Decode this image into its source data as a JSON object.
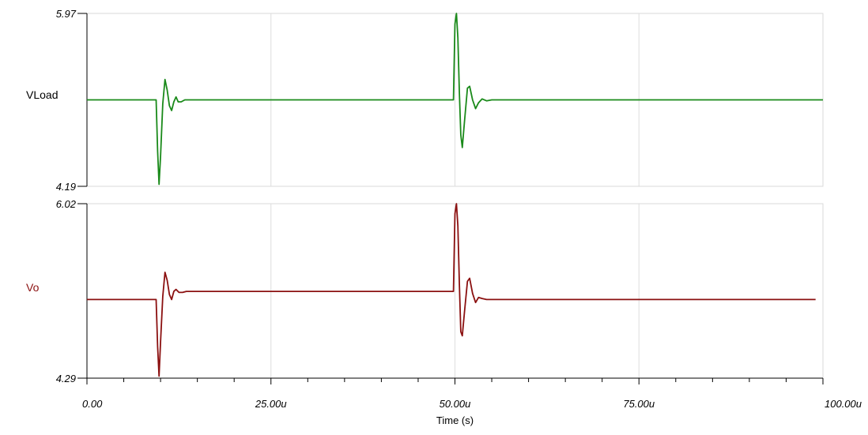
{
  "chart_data": {
    "type": "line",
    "xlabel": "Time (s)",
    "xlim": [
      0,
      100
    ],
    "x_tick_labels": [
      "0.00",
      "25.00u",
      "50.00u",
      "75.00u",
      "100.00u"
    ],
    "x_tick_values": [
      0,
      25,
      50,
      75,
      100
    ],
    "grid": true,
    "panels": [
      {
        "name": "VLoad",
        "ylim": [
          4.19,
          5.97
        ],
        "y_tick_labels": [
          "5.97",
          "4.19"
        ],
        "color": "#1a8a1a",
        "x": [
          0,
          9.4,
          9.6,
          9.8,
          10.0,
          10.3,
          10.6,
          10.9,
          11.2,
          11.5,
          11.8,
          12.1,
          12.4,
          12.8,
          13.3,
          14,
          49.8,
          50.0,
          50.2,
          50.4,
          50.6,
          50.8,
          51.0,
          51.3,
          51.7,
          52.0,
          52.4,
          52.8,
          53.2,
          53.7,
          54.3,
          55,
          100
        ],
        "y": [
          5.08,
          5.08,
          4.55,
          4.21,
          4.5,
          5.04,
          5.29,
          5.18,
          5.02,
          4.97,
          5.06,
          5.11,
          5.06,
          5.06,
          5.08,
          5.08,
          5.08,
          5.86,
          5.97,
          5.72,
          5.15,
          4.72,
          4.59,
          4.86,
          5.2,
          5.22,
          5.08,
          4.99,
          5.05,
          5.09,
          5.07,
          5.08,
          5.08
        ]
      },
      {
        "name": "Vo",
        "ylim": [
          4.29,
          6.02
        ],
        "y_tick_labels": [
          "6.02",
          "4.29"
        ],
        "color": "#8b1010",
        "x": [
          0,
          9.4,
          9.6,
          9.8,
          10.0,
          10.3,
          10.6,
          10.9,
          11.2,
          11.5,
          11.8,
          12.1,
          12.5,
          13.0,
          13.5,
          14,
          49.8,
          50.0,
          50.2,
          50.4,
          50.6,
          50.8,
          51.0,
          51.3,
          51.7,
          52.0,
          52.4,
          52.8,
          53.2,
          53.7,
          54.3,
          55,
          99
        ],
        "y": [
          5.07,
          5.07,
          4.6,
          4.31,
          4.65,
          5.1,
          5.34,
          5.26,
          5.12,
          5.07,
          5.15,
          5.17,
          5.14,
          5.14,
          5.15,
          5.15,
          5.15,
          5.92,
          6.02,
          5.8,
          5.22,
          4.75,
          4.71,
          4.95,
          5.25,
          5.28,
          5.13,
          5.04,
          5.09,
          5.08,
          5.07,
          5.07,
          5.07
        ]
      }
    ]
  }
}
